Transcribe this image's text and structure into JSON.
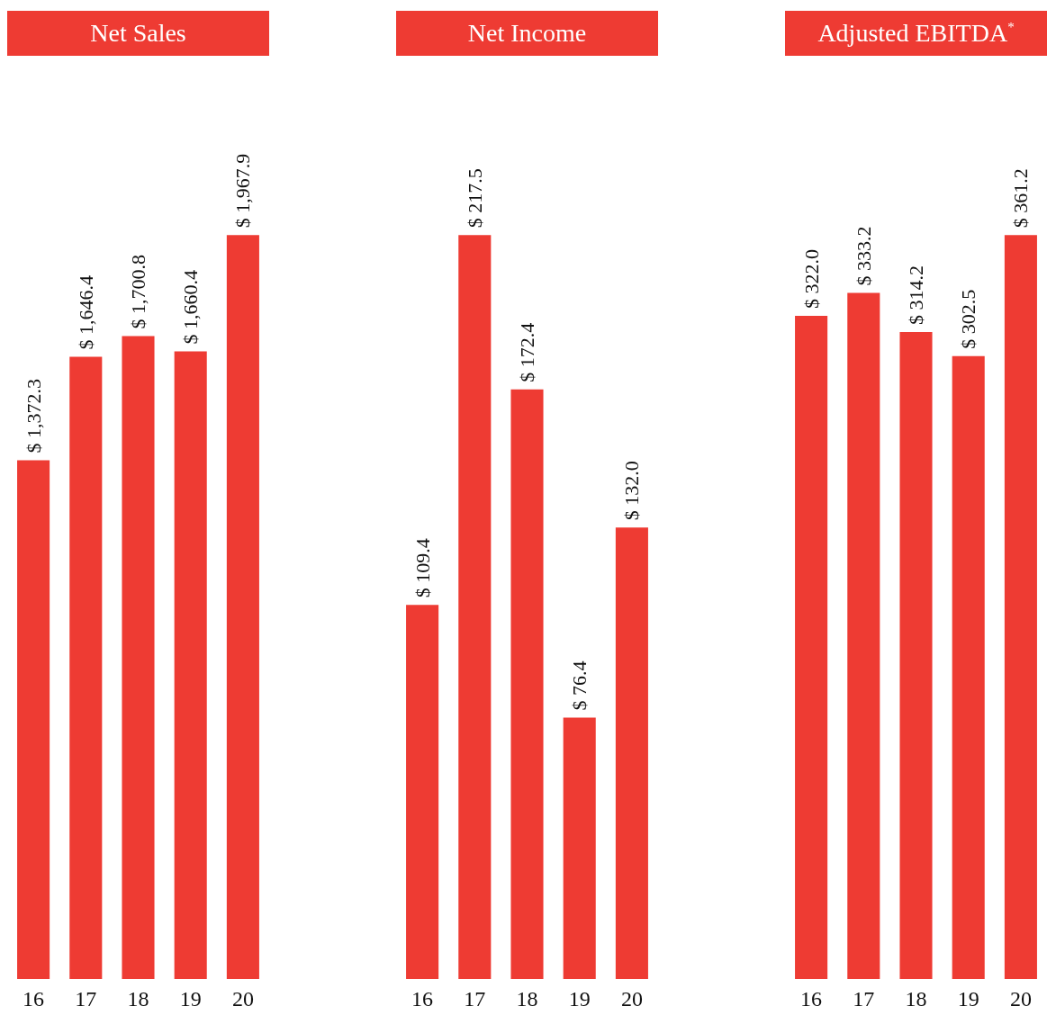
{
  "chart_data": [
    {
      "type": "bar",
      "title": "Net Sales",
      "categories": [
        "16",
        "17",
        "18",
        "19",
        "20"
      ],
      "values": [
        1372.3,
        1646.4,
        1700.8,
        1660.4,
        1967.9
      ],
      "color": "#ee3b33",
      "value_labels": [
        "$ 1,372.3",
        "$ 1,646.4",
        "$ 1,700.8",
        "$ 1,660.4",
        "$ 1,967.9"
      ],
      "tick_labels": "x"
    },
    {
      "type": "bar",
      "title": "Net Income",
      "categories": [
        "16",
        "17",
        "18",
        "19",
        "20"
      ],
      "values": [
        109.4,
        217.5,
        172.4,
        76.4,
        132.0
      ],
      "color": "#ee3b33",
      "value_labels": [
        "$ 109.4",
        "$ 217.5",
        "$ 172.4",
        "$ 76.4",
        "$ 132.0"
      ],
      "tick_labels": "x"
    },
    {
      "type": "bar",
      "title": "Adjusted EBITDA$^{*}$",
      "categories": [
        "16",
        "17",
        "18",
        "19",
        "20"
      ],
      "values": [
        322.0,
        333.2,
        314.2,
        302.5,
        361.2
      ],
      "color": "#ee3b33",
      "value_labels": [
        "$ 322.0",
        "$ 333.2",
        "$ 314.2",
        "$ 302.5",
        "$ 361.2"
      ],
      "tick_labels": "x"
    }
  ]
}
